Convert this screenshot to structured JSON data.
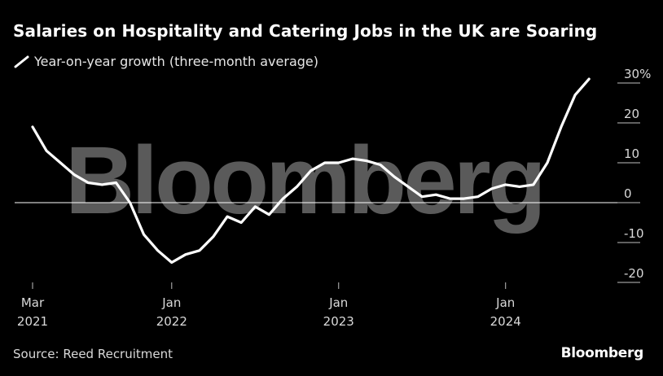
{
  "title": "Salaries on Hospitality and Catering Jobs in the UK are Soaring",
  "legend_label": "Year-on-year growth (three-month average)",
  "source": "Source: Reed Recruitment",
  "brand": "Bloomberg",
  "watermark": "Bloomberg",
  "colors": {
    "background": "#000000",
    "line": "#ffffff",
    "zero_line": "#ffffff",
    "watermark": "#5a5a5a"
  },
  "chart_data": {
    "type": "line",
    "title": "Salaries on Hospitality and Catering Jobs in the UK are Soaring",
    "ylabel": "",
    "xlabel": "",
    "ylim": [
      -20,
      30
    ],
    "y_ticks": [
      30,
      20,
      10,
      0,
      -10,
      -20
    ],
    "y_tick_labels": [
      "30%",
      "20",
      "10",
      "0",
      "-10",
      "-20"
    ],
    "x_ticks": [
      {
        "date": "2021-03",
        "line1": "Mar",
        "line2": "2021"
      },
      {
        "date": "2022-01",
        "line1": "Jan",
        "line2": "2022"
      },
      {
        "date": "2023-01",
        "line1": "Jan",
        "line2": "2023"
      },
      {
        "date": "2024-01",
        "line1": "Jan",
        "line2": "2024"
      }
    ],
    "grid": false,
    "legend_position": "top-left",
    "series": [
      {
        "name": "Year-on-year growth (three-month average)",
        "points": [
          [
            "2021-03",
            19
          ],
          [
            "2021-04",
            13
          ],
          [
            "2021-05",
            10
          ],
          [
            "2021-06",
            7
          ],
          [
            "2021-07",
            5
          ],
          [
            "2021-08",
            4.5
          ],
          [
            "2021-09",
            5
          ],
          [
            "2021-10",
            0
          ],
          [
            "2021-11",
            -8
          ],
          [
            "2021-12",
            -12
          ],
          [
            "2022-01",
            -15
          ],
          [
            "2022-02",
            -13
          ],
          [
            "2022-03",
            -12
          ],
          [
            "2022-04",
            -8.5
          ],
          [
            "2022-05",
            -3.5
          ],
          [
            "2022-06",
            -5
          ],
          [
            "2022-07",
            -1
          ],
          [
            "2022-08",
            -3
          ],
          [
            "2022-09",
            1
          ],
          [
            "2022-10",
            4
          ],
          [
            "2022-11",
            8
          ],
          [
            "2022-12",
            10
          ],
          [
            "2023-01",
            10
          ],
          [
            "2023-02",
            11
          ],
          [
            "2023-03",
            10.5
          ],
          [
            "2023-04",
            9.5
          ],
          [
            "2023-05",
            6.5
          ],
          [
            "2023-06",
            4
          ],
          [
            "2023-07",
            1.5
          ],
          [
            "2023-08",
            2
          ],
          [
            "2023-09",
            1
          ],
          [
            "2023-10",
            1
          ],
          [
            "2023-11",
            1.5
          ],
          [
            "2023-12",
            3.5
          ],
          [
            "2024-01",
            4.5
          ],
          [
            "2024-02",
            4
          ],
          [
            "2024-03",
            4.5
          ],
          [
            "2024-04",
            10
          ],
          [
            "2024-05",
            19
          ],
          [
            "2024-06",
            27
          ],
          [
            "2024-07",
            31
          ]
        ]
      }
    ]
  }
}
